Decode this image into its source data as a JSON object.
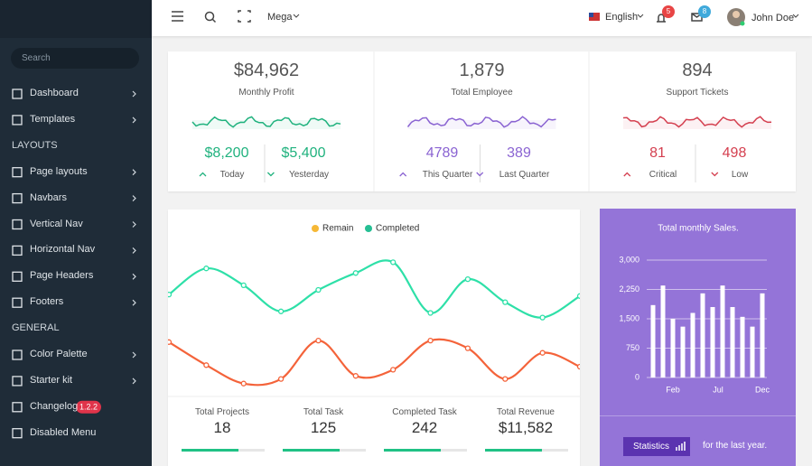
{
  "sidebar": {
    "search": "Search",
    "items": [
      {
        "label": "Dashboard"
      },
      {
        "label": "Templates"
      },
      {
        "heading": "LAYOUTS"
      },
      {
        "label": "Page layouts"
      },
      {
        "label": "Navbars"
      },
      {
        "label": "Vertical Nav"
      },
      {
        "label": "Horizontal Nav"
      },
      {
        "label": "Page Headers"
      },
      {
        "label": "Footers"
      },
      {
        "heading": "GENERAL"
      },
      {
        "label": "Color Palette"
      },
      {
        "label": "Starter kit"
      },
      {
        "label": "Changelog",
        "badge": "1.2.2"
      },
      {
        "label": "Disabled Menu"
      }
    ]
  },
  "topbar": {
    "mega": "Mega",
    "language": "English",
    "notifications": "5",
    "messages": "8",
    "user": "John Doe"
  },
  "stats": [
    {
      "value": "$84,962",
      "label": "Monthly Profit",
      "color": "#20b27e",
      "sub": [
        {
          "value": "$8,200",
          "label": "Today"
        },
        {
          "value": "$5,400",
          "label": "Yesterday"
        }
      ]
    },
    {
      "value": "1,879",
      "label": "Total Employee",
      "color": "#8a63d2",
      "sub": [
        {
          "value": "4789",
          "label": "This Quarter"
        },
        {
          "value": "389",
          "label": "Last Quarter"
        }
      ]
    },
    {
      "value": "894",
      "label": "Support Tickets",
      "color": "#d43f4f",
      "sub": [
        {
          "value": "81",
          "label": "Critical"
        },
        {
          "value": "498",
          "label": "Low"
        }
      ]
    }
  ],
  "totals": [
    {
      "label": "Total Projects",
      "value": "18"
    },
    {
      "label": "Total Task",
      "value": "125"
    },
    {
      "label": "Completed Task",
      "value": "242"
    },
    {
      "label": "Total Revenue",
      "value": "$11,582"
    }
  ],
  "sales_footer": {
    "button": "Statistics",
    "text": "for the last year."
  },
  "chart_data": [
    {
      "type": "line",
      "legend": "top",
      "ylim": [
        0,
        100
      ],
      "series": [
        {
          "name": "Remain",
          "color": "#f4633a",
          "legend_color": "#f6b836",
          "values": [
            36,
            21,
            9,
            12,
            37,
            14,
            18,
            37,
            32,
            12,
            29,
            20
          ]
        },
        {
          "name": "Completed",
          "color": "#2ee0a8",
          "legend_color": "#26bf94",
          "values": [
            67,
            84,
            73,
            56,
            70,
            81,
            88,
            55,
            77,
            62,
            52,
            66
          ]
        }
      ]
    },
    {
      "type": "bar",
      "title": "Total monthly Sales.",
      "color": "#ffffff",
      "grid": true,
      "categories": [
        null,
        "Feb",
        null,
        null,
        null,
        null,
        "Jul",
        null,
        null,
        null,
        null,
        "Dec"
      ],
      "values": [
        1850,
        2350,
        1500,
        1300,
        1650,
        2150,
        1800,
        2350,
        1800,
        1550,
        1300,
        2150
      ],
      "ylim": [
        0,
        3000
      ],
      "yticks": [
        0,
        {
          "value": 750,
          "label": "750"
        },
        {
          "value": 1500,
          "label": "1,500"
        },
        {
          "value": 2250,
          "label": "2,250"
        },
        {
          "value": 3000,
          "label": "3,000"
        }
      ]
    }
  ]
}
